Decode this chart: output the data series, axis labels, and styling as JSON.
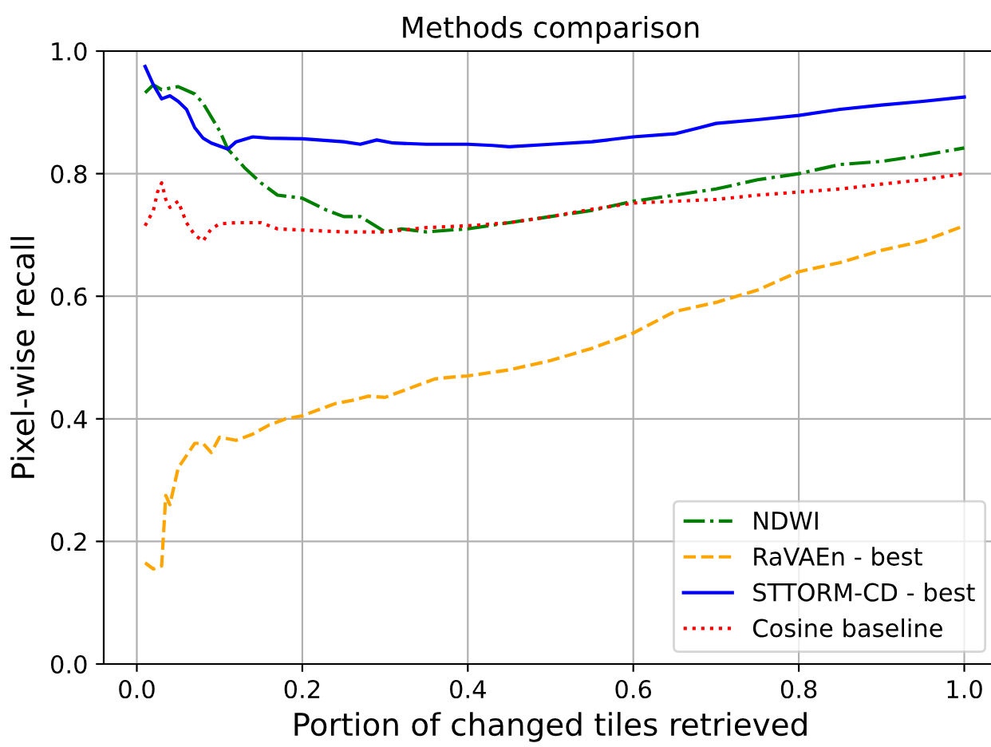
{
  "chart_data": {
    "type": "line",
    "title": "Methods comparison",
    "xlabel": "Portion of changed tiles retrieved",
    "ylabel": "Pixel-wise recall",
    "xlim": [
      -0.04,
      1.04
    ],
    "xticks": [
      {
        "value": 0,
        "label": "0.0"
      },
      0.2,
      0.4,
      0.6,
      0.8,
      {
        "value": 1,
        "label": "1.0"
      }
    ],
    "ylim": [
      0.0,
      1.0
    ],
    "yticks": [
      {
        "value": 0,
        "label": "0.0"
      },
      0.2,
      0.4,
      0.6,
      0.8,
      {
        "value": 1,
        "label": "1.0"
      }
    ],
    "grid": true,
    "legend": "bottom right",
    "series": [
      {
        "name": "NDWI",
        "color": "#008000",
        "line_style": "dashdot",
        "x": [
          0.01,
          0.02,
          0.03,
          0.05,
          0.07,
          0.08,
          0.1,
          0.11,
          0.13,
          0.15,
          0.17,
          0.2,
          0.23,
          0.25,
          0.27,
          0.3,
          0.32,
          0.35,
          0.4,
          0.45,
          0.5,
          0.55,
          0.6,
          0.65,
          0.7,
          0.75,
          0.8,
          0.85,
          0.9,
          0.95,
          1.0
        ],
        "values": [
          0.932,
          0.945,
          0.937,
          0.942,
          0.93,
          0.915,
          0.87,
          0.84,
          0.81,
          0.785,
          0.765,
          0.76,
          0.74,
          0.73,
          0.73,
          0.705,
          0.71,
          0.705,
          0.71,
          0.72,
          0.73,
          0.74,
          0.755,
          0.765,
          0.775,
          0.79,
          0.8,
          0.815,
          0.82,
          0.83,
          0.842
        ]
      },
      {
        "name": "RaVAEn - best",
        "color": "#ffa500",
        "line_style": "dashed",
        "x": [
          0.01,
          0.02,
          0.03,
          0.035,
          0.04,
          0.05,
          0.06,
          0.07,
          0.08,
          0.09,
          0.1,
          0.12,
          0.14,
          0.16,
          0.18,
          0.2,
          0.22,
          0.24,
          0.26,
          0.28,
          0.3,
          0.33,
          0.36,
          0.38,
          0.4,
          0.45,
          0.5,
          0.55,
          0.6,
          0.65,
          0.7,
          0.75,
          0.8,
          0.85,
          0.9,
          0.95,
          1.0
        ],
        "values": [
          0.165,
          0.155,
          0.16,
          0.275,
          0.26,
          0.32,
          0.34,
          0.36,
          0.36,
          0.345,
          0.37,
          0.365,
          0.375,
          0.39,
          0.4,
          0.405,
          0.415,
          0.425,
          0.43,
          0.437,
          0.435,
          0.45,
          0.465,
          0.468,
          0.47,
          0.48,
          0.495,
          0.515,
          0.54,
          0.575,
          0.59,
          0.61,
          0.64,
          0.655,
          0.675,
          0.69,
          0.715
        ]
      },
      {
        "name": "STTORM-CD - best",
        "color": "#0000ff",
        "line_style": "solid",
        "x": [
          0.01,
          0.02,
          0.03,
          0.04,
          0.05,
          0.06,
          0.07,
          0.08,
          0.09,
          0.1,
          0.11,
          0.12,
          0.14,
          0.16,
          0.2,
          0.25,
          0.27,
          0.29,
          0.31,
          0.35,
          0.4,
          0.43,
          0.45,
          0.5,
          0.55,
          0.6,
          0.65,
          0.68,
          0.7,
          0.75,
          0.8,
          0.85,
          0.9,
          0.95,
          1.0
        ],
        "values": [
          0.975,
          0.945,
          0.922,
          0.927,
          0.918,
          0.905,
          0.875,
          0.858,
          0.85,
          0.845,
          0.84,
          0.852,
          0.86,
          0.858,
          0.857,
          0.852,
          0.848,
          0.855,
          0.85,
          0.848,
          0.848,
          0.846,
          0.844,
          0.848,
          0.852,
          0.86,
          0.865,
          0.875,
          0.882,
          0.888,
          0.895,
          0.905,
          0.912,
          0.918,
          0.925
        ]
      },
      {
        "name": "Cosine baseline",
        "color": "#ff0000",
        "line_style": "dotted",
        "x": [
          0.01,
          0.02,
          0.025,
          0.03,
          0.035,
          0.04,
          0.05,
          0.06,
          0.07,
          0.08,
          0.09,
          0.1,
          0.12,
          0.15,
          0.17,
          0.2,
          0.25,
          0.3,
          0.35,
          0.4,
          0.45,
          0.5,
          0.55,
          0.6,
          0.65,
          0.7,
          0.75,
          0.8,
          0.85,
          0.9,
          0.95,
          1.0
        ],
        "values": [
          0.715,
          0.74,
          0.77,
          0.785,
          0.758,
          0.745,
          0.755,
          0.72,
          0.7,
          0.69,
          0.71,
          0.718,
          0.72,
          0.72,
          0.71,
          0.708,
          0.705,
          0.705,
          0.712,
          0.715,
          0.72,
          0.73,
          0.742,
          0.752,
          0.755,
          0.758,
          0.765,
          0.77,
          0.775,
          0.783,
          0.79,
          0.8
        ]
      }
    ]
  }
}
